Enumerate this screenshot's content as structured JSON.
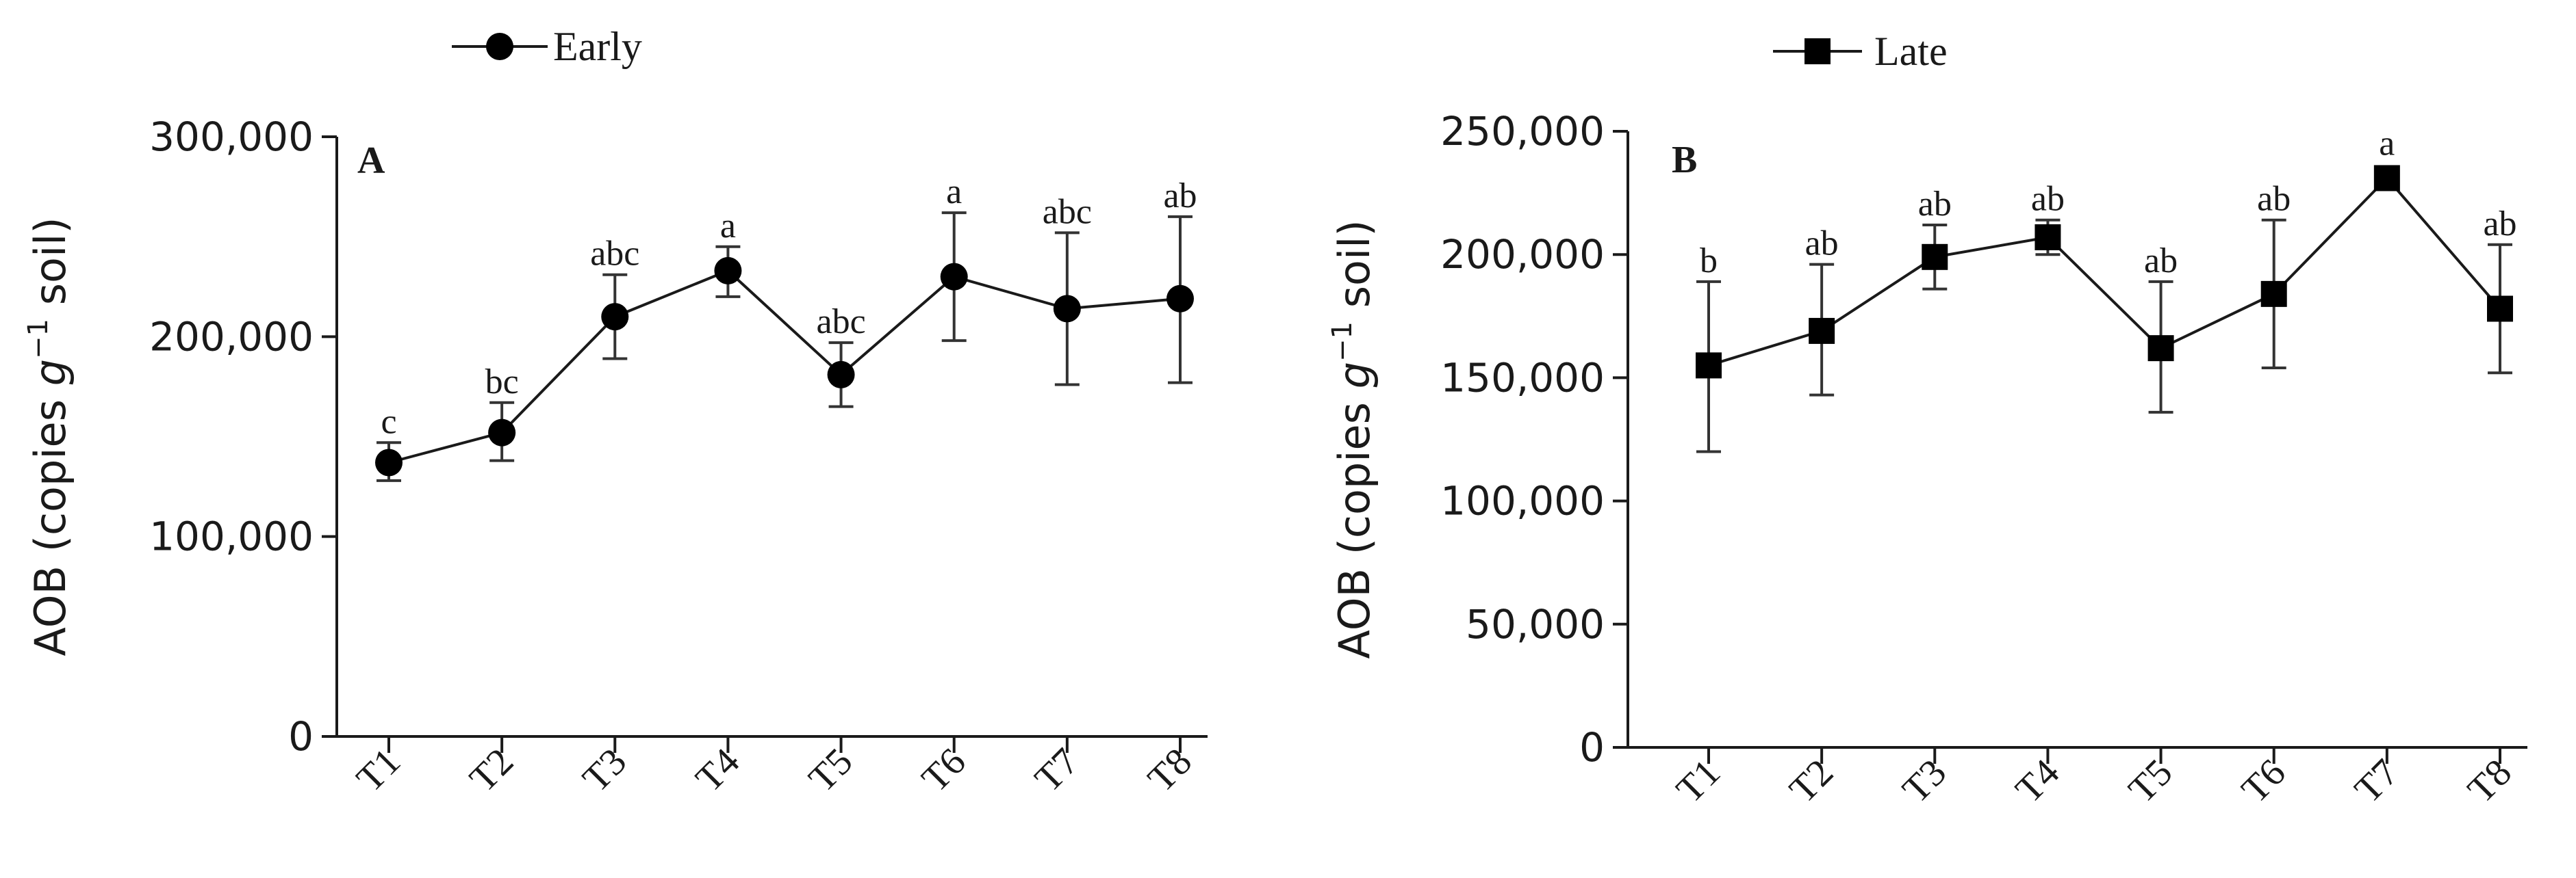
{
  "chart_data": [
    {
      "type": "line",
      "panel_label": "A",
      "legend": "Early",
      "marker": "circle",
      "ylabel_main": "AOB (copies ",
      "ylabel_g": "g",
      "ylabel_sup": "−1",
      "ylabel_end": " soil)",
      "categories": [
        "T1",
        "T2",
        "T3",
        "T4",
        "T5",
        "T6",
        "T7",
        "T8"
      ],
      "values": [
        137000,
        152000,
        210000,
        233000,
        181000,
        230000,
        214000,
        219000
      ],
      "err_low": [
        128000,
        138000,
        189000,
        220000,
        165000,
        198000,
        176000,
        177000
      ],
      "err_high": [
        147000,
        167000,
        231000,
        245000,
        197000,
        262000,
        252000,
        260000
      ],
      "sig_letters": [
        "c",
        "bc",
        "abc",
        "a",
        "abc",
        "a",
        "abc",
        "ab"
      ],
      "ylim": [
        0,
        300000
      ],
      "yticks": [
        0,
        100000,
        200000,
        300000
      ],
      "ytick_labels": [
        "0",
        "100,000",
        "200,000",
        "300,000"
      ]
    },
    {
      "type": "line",
      "panel_label": "B",
      "legend": "Late",
      "marker": "square",
      "ylabel_main": "AOB (copies ",
      "ylabel_g": "g",
      "ylabel_sup": "−1",
      "ylabel_end": " soil)",
      "categories": [
        "T1",
        "T2",
        "T3",
        "T4",
        "T5",
        "T6",
        "T7",
        "T8"
      ],
      "values": [
        155000,
        169000,
        199000,
        207000,
        162000,
        184000,
        231000,
        178000
      ],
      "err_low": [
        120000,
        143000,
        186000,
        200000,
        136000,
        154000,
        231000,
        152000
      ],
      "err_high": [
        189000,
        196000,
        212000,
        214000,
        189000,
        214000,
        231000,
        204000
      ],
      "sig_letters": [
        "b",
        "ab",
        "ab",
        "ab",
        "ab",
        "ab",
        "a",
        "ab"
      ],
      "ylim": [
        0,
        250000
      ],
      "yticks": [
        0,
        50000,
        100000,
        150000,
        200000,
        250000
      ],
      "ytick_labels": [
        "0",
        "50,000",
        "100,000",
        "150,000",
        "200,000",
        "250,000"
      ]
    }
  ]
}
